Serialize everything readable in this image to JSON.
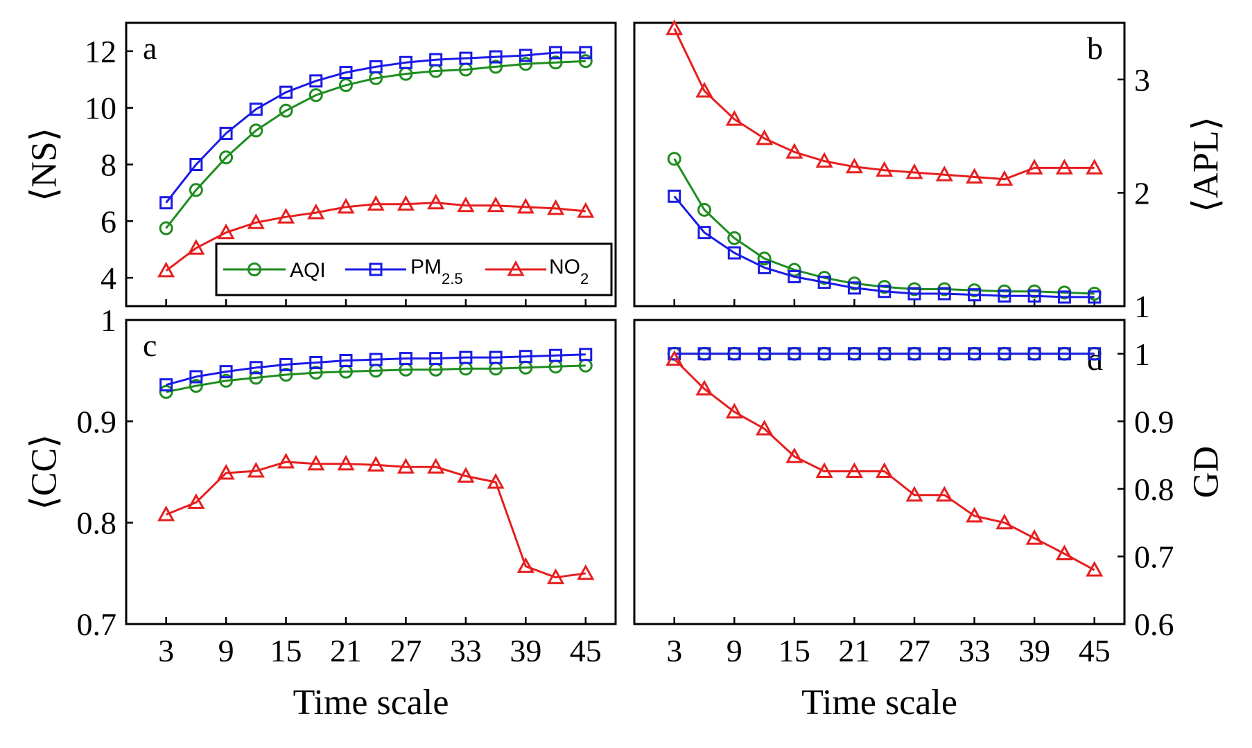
{
  "legend": {
    "entries": [
      {
        "name": "AQI",
        "sub": "",
        "color": "#1e8c1e",
        "marker": "circle"
      },
      {
        "name": "PM",
        "sub": "2.5",
        "color": "#1a1ae6",
        "marker": "square"
      },
      {
        "name": "NO",
        "sub": "2",
        "color": "#e61e1e",
        "marker": "triangle"
      }
    ]
  },
  "chart_data": [
    {
      "type": "line",
      "panel": "a",
      "ylabel": "⟨NS⟩",
      "xlabel": "",
      "x": [
        3,
        6,
        9,
        12,
        15,
        18,
        21,
        24,
        27,
        30,
        33,
        36,
        39,
        42,
        45
      ],
      "xticks": [
        "3",
        "9",
        "15",
        "21",
        "27",
        "33",
        "39",
        "45"
      ],
      "show_xtick_labels": false,
      "ylim": [
        3,
        13
      ],
      "yticks": [
        "4",
        "6",
        "8",
        "10",
        "12"
      ],
      "ytick_side": "left",
      "series": [
        {
          "name": "AQI",
          "values": [
            5.75,
            7.1,
            8.25,
            9.2,
            9.9,
            10.45,
            10.8,
            11.05,
            11.2,
            11.3,
            11.35,
            11.45,
            11.55,
            11.6,
            11.65
          ]
        },
        {
          "name": "PM2.5",
          "values": [
            6.65,
            8.0,
            9.1,
            9.95,
            10.55,
            10.95,
            11.25,
            11.45,
            11.6,
            11.7,
            11.75,
            11.8,
            11.85,
            11.95,
            11.95
          ]
        },
        {
          "name": "NO2",
          "values": [
            4.25,
            5.05,
            5.6,
            5.95,
            6.15,
            6.3,
            6.5,
            6.6,
            6.6,
            6.65,
            6.55,
            6.55,
            6.5,
            6.45,
            6.35
          ]
        }
      ]
    },
    {
      "type": "line",
      "panel": "b",
      "ylabel": "⟨APL⟩",
      "xlabel": "",
      "x": [
        3,
        6,
        9,
        12,
        15,
        18,
        21,
        24,
        27,
        30,
        33,
        36,
        39,
        42,
        45
      ],
      "xticks": [
        "3",
        "9",
        "15",
        "21",
        "27",
        "33",
        "39",
        "45"
      ],
      "show_xtick_labels": false,
      "ylim": [
        1,
        3.5
      ],
      "yticks": [
        "1",
        "2",
        "3"
      ],
      "ytick_side": "right",
      "series": [
        {
          "name": "AQI",
          "values": [
            2.3,
            1.85,
            1.6,
            1.42,
            1.32,
            1.25,
            1.2,
            1.17,
            1.15,
            1.15,
            1.14,
            1.13,
            1.13,
            1.12,
            1.11
          ]
        },
        {
          "name": "PM2.5",
          "values": [
            1.97,
            1.65,
            1.47,
            1.34,
            1.26,
            1.21,
            1.16,
            1.13,
            1.11,
            1.11,
            1.1,
            1.09,
            1.09,
            1.08,
            1.08
          ]
        },
        {
          "name": "NO2",
          "values": [
            3.45,
            2.9,
            2.65,
            2.48,
            2.36,
            2.28,
            2.23,
            2.2,
            2.18,
            2.16,
            2.14,
            2.12,
            2.22,
            2.22,
            2.22
          ]
        }
      ]
    },
    {
      "type": "line",
      "panel": "c",
      "ylabel": "⟨CC⟩",
      "xlabel": "Time scale",
      "x": [
        3,
        6,
        9,
        12,
        15,
        18,
        21,
        24,
        27,
        30,
        33,
        36,
        39,
        42,
        45
      ],
      "xticks": [
        "3",
        "9",
        "15",
        "21",
        "27",
        "33",
        "39",
        "45"
      ],
      "show_xtick_labels": true,
      "ylim": [
        0.7,
        1.0
      ],
      "yticks": [
        "0.7",
        "0.8",
        "0.9",
        "1"
      ],
      "ytick_side": "left",
      "series": [
        {
          "name": "AQI",
          "values": [
            0.929,
            0.935,
            0.94,
            0.943,
            0.946,
            0.948,
            0.949,
            0.95,
            0.951,
            0.951,
            0.952,
            0.952,
            0.953,
            0.954,
            0.955
          ]
        },
        {
          "name": "PM2.5",
          "values": [
            0.936,
            0.944,
            0.949,
            0.953,
            0.956,
            0.958,
            0.96,
            0.961,
            0.962,
            0.962,
            0.963,
            0.963,
            0.964,
            0.965,
            0.966
          ]
        },
        {
          "name": "NO2",
          "values": [
            0.808,
            0.82,
            0.849,
            0.851,
            0.86,
            0.858,
            0.858,
            0.857,
            0.855,
            0.855,
            0.846,
            0.84,
            0.757,
            0.746,
            0.75
          ]
        }
      ]
    },
    {
      "type": "line",
      "panel": "d",
      "ylabel": "GD",
      "xlabel": "Time scale",
      "x": [
        3,
        6,
        9,
        12,
        15,
        18,
        21,
        24,
        27,
        30,
        33,
        36,
        39,
        42,
        45
      ],
      "xticks": [
        "3",
        "9",
        "15",
        "21",
        "27",
        "33",
        "39",
        "45"
      ],
      "show_xtick_labels": true,
      "ylim": [
        0.6,
        1.05
      ],
      "yticks": [
        "0.6",
        "0.7",
        "0.8",
        "0.9",
        "1"
      ],
      "ytick_side": "right",
      "series": [
        {
          "name": "AQI",
          "values": [
            1,
            1,
            1,
            1,
            1,
            1,
            1,
            1,
            1,
            1,
            1,
            1,
            1,
            1,
            1
          ]
        },
        {
          "name": "PM2.5",
          "values": [
            1,
            1,
            1,
            1,
            1,
            1,
            1,
            1,
            1,
            1,
            1,
            1,
            1,
            1,
            1
          ]
        },
        {
          "name": "NO2",
          "values": [
            0.992,
            0.948,
            0.914,
            0.889,
            0.848,
            0.826,
            0.826,
            0.826,
            0.791,
            0.791,
            0.76,
            0.75,
            0.727,
            0.704,
            0.68
          ]
        }
      ]
    }
  ]
}
